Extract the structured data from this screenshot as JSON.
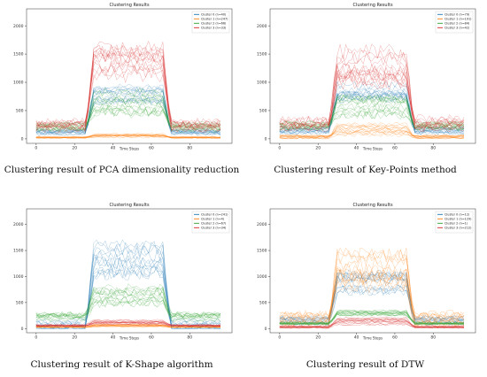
{
  "colors": {
    "blue": "#1f77b4",
    "orange": "#ff7f0e",
    "green": "#2ca02c",
    "red": "#d62728"
  },
  "panels": [
    {
      "caption": "Clustering result of PCA dimensionality reduction",
      "chart": {
        "type": "line",
        "title": "Clustering Results",
        "xlabel": "Time Steps",
        "ylabel": "",
        "xticks": [
          0,
          20,
          40,
          60,
          80
        ],
        "yticks": [
          0,
          500,
          1000,
          1500,
          2000
        ],
        "xlim": [
          -5,
          102
        ],
        "ylim": [
          -80,
          2300
        ],
        "legend_position": "top-right",
        "legend": [
          "Cluster 0 (n=40)",
          "Cluster 1 (n=247)",
          "Cluster 2 (n=66)",
          "Cluster 3 (n=33)"
        ],
        "series": [
          {
            "name": "Cluster 0 (n=40)",
            "color": "#1f77b4",
            "low": 120,
            "high": 780,
            "spread": 140
          },
          {
            "name": "Cluster 1 (n=247)",
            "color": "#ff7f0e",
            "low": 25,
            "high": 60,
            "spread": 35
          },
          {
            "name": "Cluster 2 (n=66)",
            "color": "#2ca02c",
            "low": 210,
            "high": 630,
            "spread": 200
          },
          {
            "name": "Cluster 3 (n=33)",
            "color": "#d62728",
            "low": 250,
            "high": 1350,
            "spread": 280
          }
        ]
      }
    },
    {
      "caption": "Clustering result of Key-Points method",
      "chart": {
        "type": "line",
        "title": "Clustering Results",
        "xlabel": "Time Steps",
        "ylabel": "",
        "xticks": [
          0,
          20,
          40,
          60,
          80
        ],
        "yticks": [
          0,
          500,
          1000,
          1500,
          2000
        ],
        "xlim": [
          -5,
          102
        ],
        "ylim": [
          -80,
          2300
        ],
        "legend_position": "top-right",
        "legend": [
          "Cluster 0 (n=79)",
          "Cluster 1 (n=191)",
          "Cluster 2 (n=84)",
          "Cluster 3 (n=42)"
        ],
        "series": [
          {
            "name": "Cluster 0 (n=79)",
            "color": "#1f77b4",
            "low": 150,
            "high": 780,
            "spread": 170
          },
          {
            "name": "Cluster 1 (n=191)",
            "color": "#ff7f0e",
            "low": 30,
            "high": 160,
            "spread": 90
          },
          {
            "name": "Cluster 2 (n=84)",
            "color": "#2ca02c",
            "low": 230,
            "high": 560,
            "spread": 180
          },
          {
            "name": "Cluster 3 (n=42)",
            "color": "#d62728",
            "low": 260,
            "high": 1300,
            "spread": 320
          }
        ]
      }
    },
    {
      "caption": "Clustering result of K-Shape algorithm",
      "chart": {
        "type": "line",
        "title": "Clustering Results",
        "xlabel": "Time Steps",
        "ylabel": "",
        "xticks": [
          0,
          20,
          40,
          60,
          80
        ],
        "yticks": [
          0,
          500,
          1000,
          1500,
          2000
        ],
        "xlim": [
          -5,
          102
        ],
        "ylim": [
          -80,
          2300
        ],
        "legend_position": "top-right",
        "legend": [
          "Cluster 0 (n=241)",
          "Cluster 1 (n=4)",
          "Cluster 2 (n=67)",
          "Cluster 3 (n=34)"
        ],
        "series": [
          {
            "name": "Cluster 0 (n=241)",
            "color": "#1f77b4",
            "low": 40,
            "high": 1350,
            "spread": 300
          },
          {
            "name": "Cluster 1 (n=4)",
            "color": "#ff7f0e",
            "low": 30,
            "high": 60,
            "spread": 25
          },
          {
            "name": "Cluster 2 (n=67)",
            "color": "#2ca02c",
            "low": 230,
            "high": 650,
            "spread": 190
          },
          {
            "name": "Cluster 3 (n=34)",
            "color": "#d62728",
            "low": 60,
            "high": 120,
            "spread": 50
          }
        ]
      }
    },
    {
      "caption": "Clustering result of DTW",
      "chart": {
        "type": "line",
        "title": "Clustering Results",
        "xlabel": "Time Steps",
        "ylabel": "",
        "xticks": [
          0,
          20,
          40,
          60,
          80
        ],
        "yticks": [
          0,
          500,
          1000,
          1500,
          2000
        ],
        "xlim": [
          -5,
          102
        ],
        "ylim": [
          -80,
          2300
        ],
        "legend_position": "top-right",
        "legend": [
          "Cluster 0 (n=12)",
          "Cluster 1 (n=129)",
          "Cluster 2 (n=1)",
          "Cluster 3 (n=212)"
        ],
        "series": [
          {
            "name": "Cluster 0 (n=12)",
            "color": "#1f77b4",
            "low": 150,
            "high": 900,
            "spread": 200
          },
          {
            "name": "Cluster 1 (n=129)",
            "color": "#ff7f0e",
            "low": 180,
            "high": 1150,
            "spread": 330
          },
          {
            "name": "Cluster 2 (n=1)",
            "color": "#2ca02c",
            "low": 100,
            "high": 300,
            "spread": 60
          },
          {
            "name": "Cluster 3 (n=212)",
            "color": "#d62728",
            "low": 30,
            "high": 140,
            "spread": 60
          }
        ]
      }
    }
  ]
}
